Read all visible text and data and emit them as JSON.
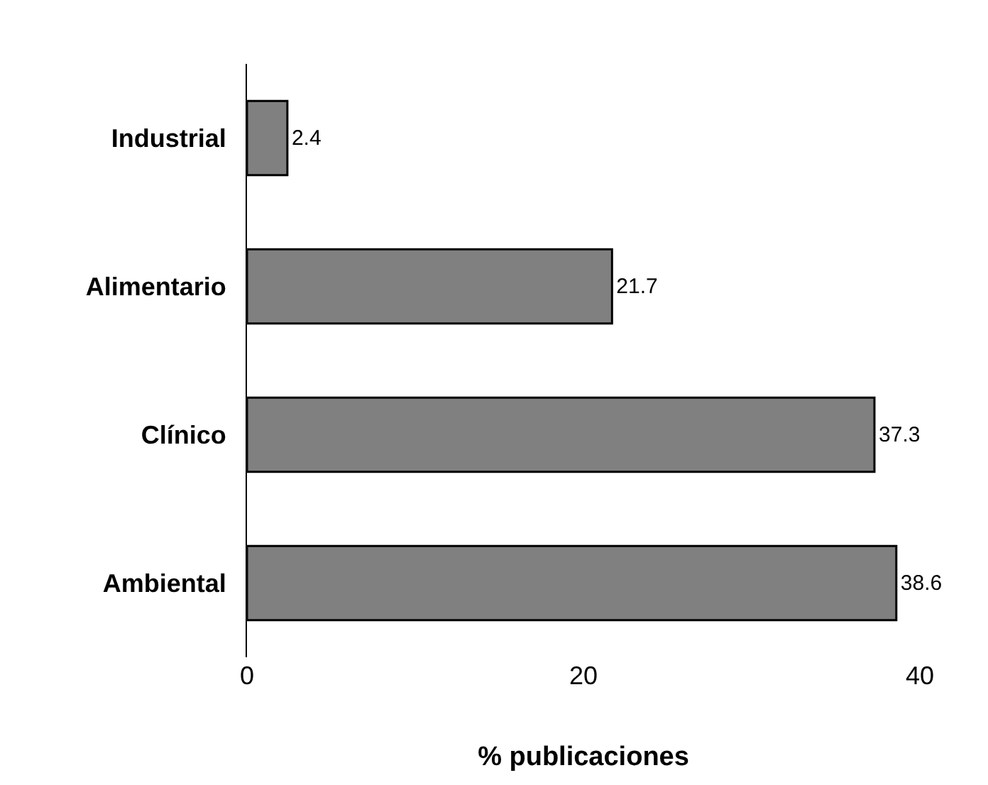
{
  "chart_data": {
    "type": "bar",
    "orientation": "horizontal",
    "xlabel": "% publicaciones",
    "categories": [
      "Industrial",
      "Alimentario",
      "Clínico",
      "Ambiental"
    ],
    "values": [
      2.4,
      21.7,
      37.3,
      38.6
    ],
    "color": "#808080",
    "xlim": [
      0,
      40
    ],
    "xticks": [
      0,
      20,
      40
    ],
    "data_labels": true,
    "legend": false
  }
}
